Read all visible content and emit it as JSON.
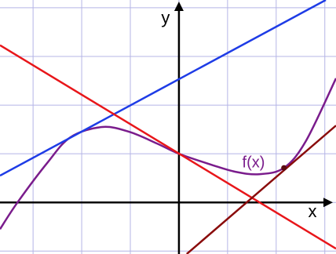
{
  "chart_data": {
    "type": "line",
    "xlabel": "x",
    "ylabel": "y",
    "xlim": [
      -3.68,
      3.23
    ],
    "ylim": [
      -1.06,
      4.16
    ],
    "xticks": [
      -3,
      -2,
      -1,
      0,
      1,
      2,
      3
    ],
    "yticks": [
      -1,
      0,
      1,
      2,
      3,
      4
    ],
    "grid": true,
    "grid_color": "#b4b4e6",
    "axis_color": "#000000",
    "series": [
      {
        "name": "f(x)",
        "color": "#7a1c8c",
        "x": [
          -3.68,
          -3.32,
          -2.71,
          -2.23,
          -1.58,
          -1.02,
          -0.45,
          0,
          0.68,
          1.16,
          1.65,
          2.16,
          2.61,
          3.23
        ],
        "values": [
          -0.55,
          0,
          0.81,
          1.34,
          1.55,
          1.45,
          1.21,
          1,
          0.77,
          0.63,
          0.58,
          0.71,
          1.26,
          2.55
        ]
      },
      {
        "color": "#1e3ce6",
        "x": [
          -3.68,
          3.02
        ],
        "values": [
          0.55,
          4.16
        ]
      },
      {
        "color": "#e8161a",
        "x": [
          -3.68,
          3.23
        ],
        "values": [
          3.23,
          -0.95
        ]
      },
      {
        "color": "#8a0c0c",
        "x": [
          0.16,
          3.23
        ],
        "values": [
          -1.06,
          1.58
        ]
      }
    ],
    "point": {
      "x": 2.16,
      "y": 0.71,
      "color": "#5a0a10"
    }
  }
}
